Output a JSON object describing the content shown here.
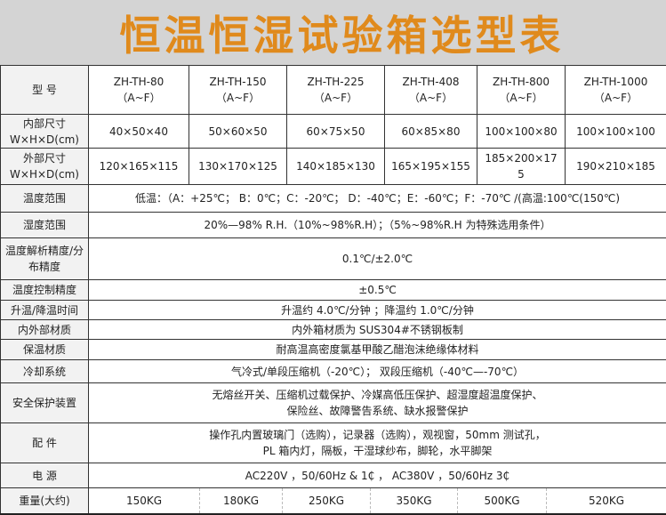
{
  "title": "恒温恒湿试验箱选型表",
  "colors": {
    "title": "#e08a1c",
    "title_bg": "#d4d4d4"
  },
  "header": {
    "label": "型 号",
    "models": [
      {
        "name": "ZH-TH-80",
        "sub": "（A~F）"
      },
      {
        "name": "ZH-TH-150",
        "sub": "（A~F）"
      },
      {
        "name": "ZH-TH-225",
        "sub": "（A~F）"
      },
      {
        "name": "ZH-TH-408",
        "sub": "（A~F）"
      },
      {
        "name": "ZH-TH-800",
        "sub": "（A~F）"
      },
      {
        "name": "ZH-TH-1000",
        "sub": "（A~F）"
      }
    ]
  },
  "inner": {
    "label1": "内部尺寸",
    "label2": "W×H×D(cm)",
    "values": [
      "40×50×40",
      "50×60×50",
      "60×75×50",
      "60×85×80",
      "100×100×80",
      "100×100×100"
    ]
  },
  "outer": {
    "label1": "外部尺寸",
    "label2": "W×H×D(cm)",
    "values": [
      "120×165×115",
      "130×170×125",
      "140×185×130",
      "165×195×155",
      "185×200×175",
      "190×210×185"
    ]
  },
  "rows": [
    {
      "label": "温度范围",
      "value": "低温：（A：+25℃； B：0℃；C：-20℃； D：-40℃；E：-60℃；F：-70℃ /(高温:100℃(150℃)"
    },
    {
      "label": "湿度范围",
      "value": "20%—98% R.H.（10%~98%R.H）；（5%~98%R.H 为特殊选用条件）"
    },
    {
      "label": "温度解析精度/分布精度",
      "value": "0.1℃/±2.0℃"
    },
    {
      "label": "温度控制精度",
      "value": "±0.5℃"
    },
    {
      "label": "升温/降温时间",
      "value": "升温约 4.0℃/分钟 ；降温约 1.0℃/分钟"
    },
    {
      "label": "内外部材质",
      "value": "内外箱材质为 SUS304#不锈钢板制"
    },
    {
      "label": "保温材质",
      "value": "耐高温高密度氯基甲酸乙醋泡沫绝缘体材料"
    },
    {
      "label": "冷却系统",
      "value": "气冷式/单段压缩机（-20℃）； 双段压缩机（-40℃—-70℃）"
    },
    {
      "label": "安全保护装置",
      "value": "无熔丝开关、压缩机过载保护、冷媒高低压保护、超湿度超温度保护、",
      "value2": "保险丝、故障警告系统、缺水报警保护"
    },
    {
      "label": "配 件",
      "value": "操作孔内置玻璃门（选购），记录器（选购），观视窗，50mm 测试孔，",
      "value2": "PL 箱内灯，隔板，干湿球纱布，脚轮，水平脚架"
    },
    {
      "label": "电 源",
      "value": "AC220V ，50/60Hz & 1₵ ， AC380V ，50/60Hz 3₵"
    }
  ],
  "weight": {
    "label": "重量(大约)",
    "values": [
      "150KG",
      "180KG",
      "250KG",
      "350KG",
      "500KG",
      "520KG"
    ]
  }
}
